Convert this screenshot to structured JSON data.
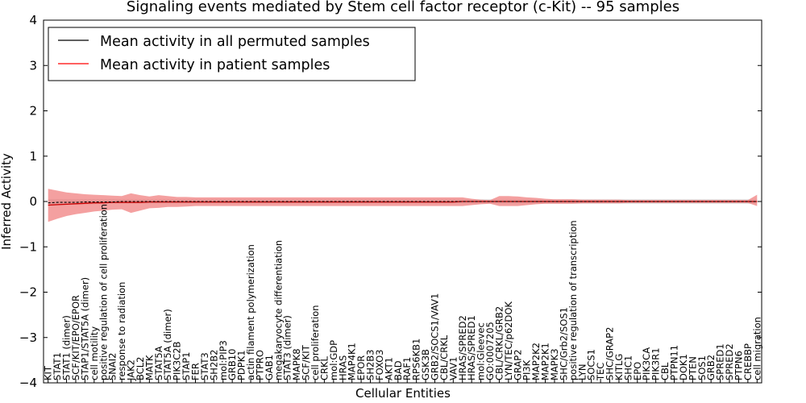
{
  "chart_data": {
    "type": "line",
    "title": "Signaling events mediated by Stem cell factor receptor (c-Kit) -- 95 samples",
    "xlabel": "Cellular Entities",
    "ylabel": "Inferred Activity",
    "ylim": [
      -4,
      4
    ],
    "yticks": [
      -4,
      -3,
      -2,
      -1,
      0,
      1,
      2,
      3,
      4
    ],
    "ytick_labels": [
      "−4",
      "−3",
      "−2",
      "−1",
      "0",
      "1",
      "2",
      "3",
      "4"
    ],
    "legend": {
      "placement": "top-left",
      "entries": [
        {
          "label": "Mean activity in all permuted samples",
          "color": "#000000"
        },
        {
          "label": "Mean activity in patient samples",
          "color": "#ff0000"
        }
      ]
    },
    "colors": {
      "patient_band": "#f08080",
      "permuted_band": "#c8c8c8",
      "patient_line": "#cc0000",
      "permuted_line": "#000000"
    },
    "categories": [
      "KIT",
      "STAT1",
      "STAT1 (dimer)",
      "SCF/KIT/EPO/EPOR",
      "STAP1/STAT5A (dimer)",
      "cell motility",
      "positive regulation of cell proliferation",
      "SNAI2",
      "response to radiation",
      "JAK2",
      "BCL2",
      "MATK",
      "STAT5A",
      "STAT5A (dimer)",
      "PIK3C2B",
      "STAP1",
      "FER",
      "STAT3",
      "SH2B2",
      "mol:PIP3",
      "GRB10",
      "PDPK1",
      "actin filament polymerization",
      "PTPRO",
      "GAB1",
      "megakaryocyte differentiation",
      "STAT3 (dimer)",
      "MAPK8",
      "SCF/KIT",
      "cell proliferation",
      "CRKL",
      "mol:GDP",
      "HRAS",
      "MAP4K1",
      "EPOR",
      "SH2B3",
      "FOXO3",
      "AKT1",
      "BAD",
      "RAF1",
      "RPS6KB1",
      "GSK3B",
      "GRB2/SOCS1/VAV1",
      "CBL/CRKL",
      "VAV1",
      "HRAS/SPRED2",
      "HRAS/SPRED1",
      "mol:Gleevec",
      "GO:0007205",
      "CBL/CRKL/GRB2",
      "LYN/TEC/p62DOK",
      "GRAP2",
      "PI3K",
      "MAP2K2",
      "MAP2K1",
      "MAPK3",
      "SHC/Grb2/SOS1",
      "positive regulation of transcription",
      "LYN",
      "SOCS1",
      "TEC",
      "SHC/GRAP2",
      "KITLG",
      "SHC1",
      "EPO",
      "PIK3CA",
      "PIK3R1",
      "CBL",
      "PTPN11",
      "DOK1",
      "PTEN",
      "SOS1",
      "GRB2",
      "SPRED1",
      "SPRED2",
      "PTPN6",
      "CREBBP",
      "cell migration"
    ],
    "series": [
      {
        "name": "Mean activity in all permuted samples",
        "values": [
          -0.03,
          -0.02,
          -0.02,
          -0.02,
          -0.01,
          -0.01,
          -0.01,
          -0.01,
          0.0,
          0.0,
          0.0,
          0.0,
          0.0,
          0.0,
          0.0,
          0.0,
          0.0,
          0.0,
          0.0,
          0.0,
          0.0,
          0.0,
          0.0,
          0.0,
          0.0,
          0.0,
          0.0,
          0.0,
          0.0,
          0.0,
          0.0,
          0.0,
          0.0,
          0.0,
          0.0,
          0.0,
          0.0,
          0.0,
          0.0,
          0.0,
          0.0,
          0.0,
          0.0,
          0.0,
          0.0,
          0.0,
          0.0,
          0.0,
          0.0,
          0.0,
          0.0,
          0.0,
          0.0,
          0.0,
          0.0,
          0.0,
          0.0,
          0.0,
          0.0,
          0.0,
          0.0,
          0.0,
          0.0,
          0.0,
          0.0,
          0.0,
          0.0,
          0.0,
          0.0,
          0.0,
          0.0,
          0.0,
          0.0,
          0.0,
          0.0,
          0.0,
          0.0,
          0.0
        ],
        "lower": [
          -0.1,
          -0.09,
          -0.08,
          -0.07,
          -0.06,
          -0.06,
          -0.05,
          -0.05,
          -0.05,
          -0.05,
          -0.05,
          -0.05,
          -0.05,
          -0.05,
          -0.05,
          -0.05,
          -0.05,
          -0.05,
          -0.05,
          -0.05,
          -0.05,
          -0.05,
          -0.05,
          -0.05,
          -0.05,
          -0.05,
          -0.05,
          -0.05,
          -0.05,
          -0.05,
          -0.05,
          -0.05,
          -0.05,
          -0.05,
          -0.05,
          -0.05,
          -0.05,
          -0.05,
          -0.05,
          -0.05,
          -0.05,
          -0.05,
          -0.05,
          -0.05,
          -0.05,
          -0.05,
          -0.05,
          -0.05,
          -0.05,
          -0.05,
          -0.05,
          -0.05,
          -0.05,
          -0.05,
          -0.05,
          -0.05,
          -0.05,
          -0.05,
          -0.05,
          -0.05,
          -0.05,
          -0.05,
          -0.05,
          -0.05,
          -0.05,
          -0.05,
          -0.05,
          -0.05,
          -0.05,
          -0.05,
          -0.05,
          -0.05,
          -0.05,
          -0.05,
          -0.05,
          -0.05,
          -0.05,
          -0.05
        ],
        "upper": [
          0.05,
          0.05,
          0.05,
          0.05,
          0.05,
          0.05,
          0.05,
          0.05,
          0.05,
          0.05,
          0.05,
          0.05,
          0.05,
          0.05,
          0.05,
          0.05,
          0.05,
          0.05,
          0.05,
          0.05,
          0.05,
          0.05,
          0.05,
          0.05,
          0.05,
          0.05,
          0.05,
          0.05,
          0.05,
          0.05,
          0.05,
          0.05,
          0.05,
          0.05,
          0.05,
          0.05,
          0.05,
          0.05,
          0.05,
          0.05,
          0.05,
          0.05,
          0.05,
          0.05,
          0.05,
          0.05,
          0.05,
          0.05,
          0.05,
          0.05,
          0.05,
          0.05,
          0.05,
          0.05,
          0.05,
          0.05,
          0.05,
          0.05,
          0.05,
          0.05,
          0.05,
          0.05,
          0.05,
          0.05,
          0.05,
          0.05,
          0.05,
          0.05,
          0.05,
          0.05,
          0.05,
          0.05,
          0.05,
          0.05,
          0.05,
          0.05,
          0.05,
          0.05
        ]
      },
      {
        "name": "Mean activity in patient samples",
        "values": [
          -0.08,
          -0.07,
          -0.06,
          -0.05,
          -0.04,
          -0.03,
          -0.03,
          -0.02,
          -0.02,
          -0.02,
          -0.02,
          -0.01,
          -0.01,
          -0.01,
          -0.01,
          -0.01,
          -0.01,
          -0.01,
          -0.01,
          -0.01,
          -0.01,
          -0.01,
          -0.01,
          -0.01,
          -0.01,
          -0.01,
          -0.01,
          -0.01,
          -0.01,
          -0.01,
          -0.01,
          -0.01,
          -0.01,
          -0.01,
          -0.01,
          -0.01,
          -0.01,
          -0.01,
          -0.01,
          -0.01,
          -0.01,
          -0.01,
          -0.01,
          -0.01,
          -0.01,
          0.0,
          0.0,
          0.0,
          0.0,
          0.0,
          0.0,
          0.0,
          0.0,
          0.0,
          0.0,
          0.0,
          0.0,
          0.0,
          0.0,
          0.0,
          0.0,
          0.0,
          0.0,
          0.0,
          0.0,
          0.0,
          0.0,
          0.0,
          0.0,
          0.0,
          0.0,
          0.0,
          0.0,
          0.0,
          0.0,
          0.0,
          0.0,
          0.0
        ],
        "lower": [
          -0.45,
          -0.38,
          -0.32,
          -0.28,
          -0.25,
          -0.22,
          -0.2,
          -0.18,
          -0.17,
          -0.25,
          -0.2,
          -0.15,
          -0.14,
          -0.12,
          -0.12,
          -0.11,
          -0.1,
          -0.1,
          -0.1,
          -0.1,
          -0.1,
          -0.1,
          -0.1,
          -0.1,
          -0.1,
          -0.1,
          -0.1,
          -0.1,
          -0.1,
          -0.1,
          -0.1,
          -0.1,
          -0.1,
          -0.1,
          -0.1,
          -0.1,
          -0.1,
          -0.1,
          -0.1,
          -0.1,
          -0.1,
          -0.1,
          -0.1,
          -0.1,
          -0.1,
          -0.1,
          -0.08,
          -0.06,
          -0.05,
          -0.1,
          -0.1,
          -0.1,
          -0.08,
          -0.06,
          -0.05,
          -0.05,
          -0.05,
          -0.05,
          -0.04,
          -0.04,
          -0.04,
          -0.04,
          -0.04,
          -0.03,
          -0.03,
          -0.03,
          -0.03,
          -0.03,
          -0.03,
          -0.03,
          -0.03,
          -0.03,
          -0.03,
          -0.03,
          -0.03,
          -0.03,
          -0.03,
          -0.1
        ],
        "upper": [
          0.28,
          0.24,
          0.2,
          0.18,
          0.16,
          0.15,
          0.14,
          0.13,
          0.12,
          0.18,
          0.14,
          0.11,
          0.14,
          0.12,
          0.1,
          0.1,
          0.09,
          0.09,
          0.09,
          0.09,
          0.09,
          0.09,
          0.09,
          0.09,
          0.09,
          0.09,
          0.09,
          0.09,
          0.09,
          0.09,
          0.09,
          0.09,
          0.09,
          0.09,
          0.09,
          0.09,
          0.09,
          0.09,
          0.09,
          0.09,
          0.09,
          0.09,
          0.09,
          0.09,
          0.09,
          0.09,
          0.06,
          0.04,
          0.03,
          0.12,
          0.12,
          0.11,
          0.09,
          0.08,
          0.06,
          0.05,
          0.05,
          0.05,
          0.04,
          0.04,
          0.04,
          0.04,
          0.04,
          0.03,
          0.03,
          0.03,
          0.03,
          0.03,
          0.03,
          0.03,
          0.03,
          0.03,
          0.03,
          0.03,
          0.03,
          0.03,
          0.03,
          0.15
        ]
      }
    ]
  }
}
